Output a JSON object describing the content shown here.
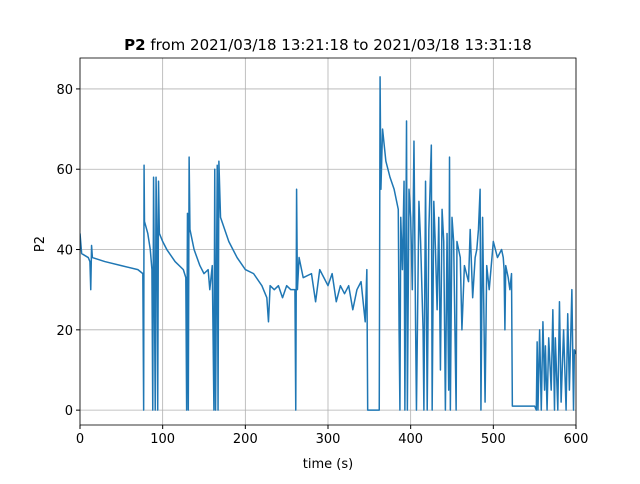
{
  "chart_data": {
    "type": "line",
    "title": "P2",
    "title_suffix": "from 2021/03/18 13:21:18 to 2021/03/18 13:31:18",
    "x_label": "time (s)",
    "y_label": "P2",
    "xlim": [
      0,
      600
    ],
    "ylim": [
      -3.7,
      87.7
    ],
    "xticks": [
      0,
      100,
      200,
      300,
      400,
      500,
      600
    ],
    "yticks": [
      0,
      20,
      40,
      60,
      80
    ],
    "grid": true,
    "series": [
      {
        "name": "P2",
        "color": "#1f77b4",
        "x": [
          0,
          2,
          10,
          12,
          13,
          14,
          15,
          30,
          50,
          70,
          76,
          77,
          77.5,
          78,
          82,
          85,
          87,
          88,
          89,
          90,
          91,
          92,
          93,
          94,
          95,
          96,
          100,
          105,
          115,
          125,
          128,
          129,
          130,
          131,
          132,
          133,
          138,
          145,
          150,
          155,
          157,
          160,
          162,
          163,
          164,
          166,
          167,
          168,
          170,
          180,
          190,
          200,
          210,
          220,
          226,
          228,
          230,
          235,
          240,
          245,
          250,
          255,
          260,
          261,
          262,
          263,
          265,
          270,
          280,
          285,
          290,
          295,
          300,
          305,
          310,
          315,
          320,
          325,
          330,
          335,
          340,
          345,
          347,
          348,
          350,
          358,
          362,
          363,
          364,
          366,
          370,
          375,
          380,
          385,
          386,
          387,
          388,
          390,
          392,
          393,
          395,
          396,
          398,
          400,
          402,
          404,
          406,
          407,
          410,
          412,
          415,
          416,
          418,
          420,
          422,
          425,
          426,
          428,
          430,
          432,
          434,
          436,
          438,
          440,
          442,
          444,
          446,
          447,
          448,
          450,
          452,
          455,
          456,
          460,
          462,
          465,
          470,
          472,
          475,
          478,
          480,
          482,
          484,
          485,
          487,
          490,
          492,
          495,
          500,
          505,
          510,
          512,
          513,
          514,
          515,
          518,
          520,
          522,
          523,
          530,
          540,
          550,
          552,
          553,
          554,
          556,
          558,
          560,
          562,
          563,
          565,
          567,
          570,
          572,
          574,
          575,
          578,
          580,
          582,
          585,
          588,
          590,
          592,
          595,
          597,
          598,
          600
        ],
        "values": [
          44,
          39,
          38,
          37,
          30,
          41,
          38,
          37,
          36,
          35,
          34,
          0,
          61,
          47,
          44,
          40,
          35,
          0,
          58,
          30,
          0,
          58,
          45,
          0,
          57,
          44,
          42,
          40,
          37,
          35,
          33,
          0,
          49,
          0,
          63,
          45,
          40,
          36,
          34,
          35,
          30,
          36,
          0,
          60,
          0,
          61,
          0,
          62,
          48,
          42,
          38,
          35,
          34,
          31,
          28,
          22,
          31,
          30,
          31,
          28,
          31,
          30,
          30,
          0,
          55,
          30,
          38,
          33,
          34,
          27,
          35,
          33,
          31,
          34,
          27,
          31,
          29,
          31,
          25,
          30,
          32,
          22,
          35,
          0,
          0,
          0,
          0,
          83,
          55,
          70,
          62,
          58,
          55,
          50,
          20,
          0,
          48,
          35,
          57,
          0,
          72,
          0,
          55,
          48,
          30,
          67,
          20,
          0,
          52,
          42,
          20,
          0,
          57,
          0,
          45,
          66,
          0,
          52,
          40,
          25,
          48,
          10,
          50,
          42,
          0,
          44,
          5,
          63,
          0,
          48,
          42,
          0,
          42,
          38,
          20,
          36,
          32,
          45,
          28,
          38,
          40,
          45,
          55,
          0,
          48,
          2,
          36,
          30,
          42,
          38,
          40,
          38,
          35,
          20,
          36,
          33,
          30,
          34,
          1,
          1,
          1,
          1,
          0,
          17,
          0,
          20,
          0,
          22,
          5,
          16,
          0,
          18,
          5,
          25,
          0,
          18,
          0,
          27,
          2,
          20,
          0,
          24,
          5,
          30,
          0,
          15,
          14
        ]
      }
    ]
  }
}
